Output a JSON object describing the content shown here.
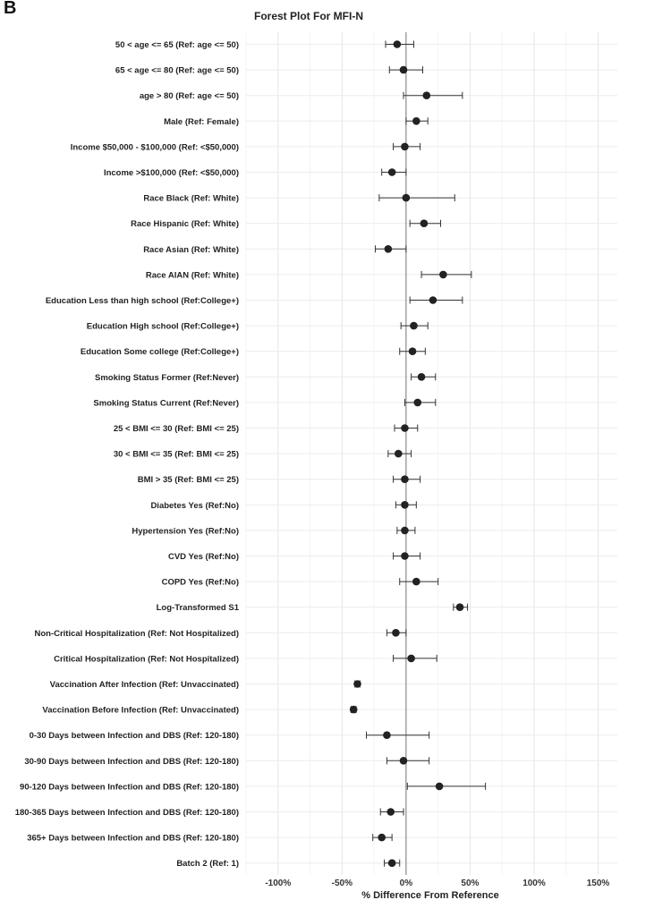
{
  "panel_label": "B",
  "chart_data": {
    "type": "forest",
    "title": "Forest Plot For MFI-N",
    "xlabel": "% Difference From Reference",
    "xlim": [
      -125,
      165
    ],
    "xticks": [
      -100,
      -50,
      0,
      50,
      100,
      150
    ],
    "xtick_labels": [
      "-100%",
      "-50%",
      "0%",
      "50%",
      "100%",
      "150%"
    ],
    "reference_line": 0,
    "rows": [
      {
        "label": "50 < age <= 65 (Ref: age <= 50)",
        "estimate": -7,
        "lower": -16,
        "upper": 6
      },
      {
        "label": "65 < age <= 80 (Ref: age <= 50)",
        "estimate": -2,
        "lower": -13,
        "upper": 13
      },
      {
        "label": "age > 80 (Ref: age <= 50)",
        "estimate": 16,
        "lower": -2,
        "upper": 44
      },
      {
        "label": "Male (Ref: Female)",
        "estimate": 8,
        "lower": 0,
        "upper": 17
      },
      {
        "label": "Income $50,000 - $100,000 (Ref: <$50,000)",
        "estimate": -1,
        "lower": -10,
        "upper": 11
      },
      {
        "label": "Income >$100,000 (Ref: <$50,000)",
        "estimate": -11,
        "lower": -19,
        "upper": 0
      },
      {
        "label": "Race Black (Ref: White)",
        "estimate": 0,
        "lower": -21,
        "upper": 38
      },
      {
        "label": "Race Hispanic (Ref: White)",
        "estimate": 14,
        "lower": 3,
        "upper": 27
      },
      {
        "label": "Race Asian (Ref: White)",
        "estimate": -14,
        "lower": -24,
        "upper": 0
      },
      {
        "label": "Race AIAN (Ref: White)",
        "estimate": 29,
        "lower": 12,
        "upper": 51
      },
      {
        "label": "Education Less than high school (Ref:College+)",
        "estimate": 21,
        "lower": 3,
        "upper": 44
      },
      {
        "label": "Education High school (Ref:College+)",
        "estimate": 6,
        "lower": -4,
        "upper": 17
      },
      {
        "label": "Education Some college (Ref:College+)",
        "estimate": 5,
        "lower": -5,
        "upper": 15
      },
      {
        "label": "Smoking Status Former (Ref:Never)",
        "estimate": 12,
        "lower": 4,
        "upper": 23
      },
      {
        "label": "Smoking Status Current (Ref:Never)",
        "estimate": 9,
        "lower": -1,
        "upper": 23
      },
      {
        "label": "25 < BMI <= 30 (Ref: BMI <= 25)",
        "estimate": -1,
        "lower": -9,
        "upper": 9
      },
      {
        "label": "30 < BMI <= 35 (Ref: BMI <= 25)",
        "estimate": -6,
        "lower": -14,
        "upper": 4
      },
      {
        "label": "BMI > 35 (Ref: BMI <= 25)",
        "estimate": -1,
        "lower": -10,
        "upper": 11
      },
      {
        "label": "Diabetes Yes (Ref:No)",
        "estimate": -1,
        "lower": -8,
        "upper": 8
      },
      {
        "label": "Hypertension Yes (Ref:No)",
        "estimate": -1,
        "lower": -7,
        "upper": 7
      },
      {
        "label": "CVD Yes (Ref:No)",
        "estimate": -1,
        "lower": -10,
        "upper": 11
      },
      {
        "label": "COPD Yes (Ref:No)",
        "estimate": 8,
        "lower": -5,
        "upper": 25
      },
      {
        "label": "Log-Transformed S1",
        "estimate": 42,
        "lower": 37,
        "upper": 48
      },
      {
        "label": "Non-Critical Hospitalization (Ref: Not Hospitalized)",
        "estimate": -8,
        "lower": -15,
        "upper": 0
      },
      {
        "label": "Critical Hospitalization (Ref: Not Hospitalized)",
        "estimate": 4,
        "lower": -10,
        "upper": 24
      },
      {
        "label": "Vaccination After Infection (Ref: Unvaccinated)",
        "estimate": -38,
        "lower": -40,
        "upper": -36
      },
      {
        "label": "Vaccination Before Infection (Ref: Unvaccinated)",
        "estimate": -41,
        "lower": -43,
        "upper": -39
      },
      {
        "label": "0-30 Days between Infection and DBS (Ref: 120-180)",
        "estimate": -15,
        "lower": -31,
        "upper": 18
      },
      {
        "label": "30-90 Days between Infection and DBS (Ref: 120-180)",
        "estimate": -2,
        "lower": -15,
        "upper": 18
      },
      {
        "label": "90-120 Days between Infection and DBS (Ref: 120-180)",
        "estimate": 26,
        "lower": 1,
        "upper": 62
      },
      {
        "label": "180-365 Days between Infection and DBS (Ref: 120-180)",
        "estimate": -12,
        "lower": -20,
        "upper": -2
      },
      {
        "label": "365+ Days between Infection and DBS (Ref: 120-180)",
        "estimate": -19,
        "lower": -26,
        "upper": -11
      },
      {
        "label": "Batch 2 (Ref: 1)",
        "estimate": -11,
        "lower": -17,
        "upper": -5
      }
    ]
  }
}
